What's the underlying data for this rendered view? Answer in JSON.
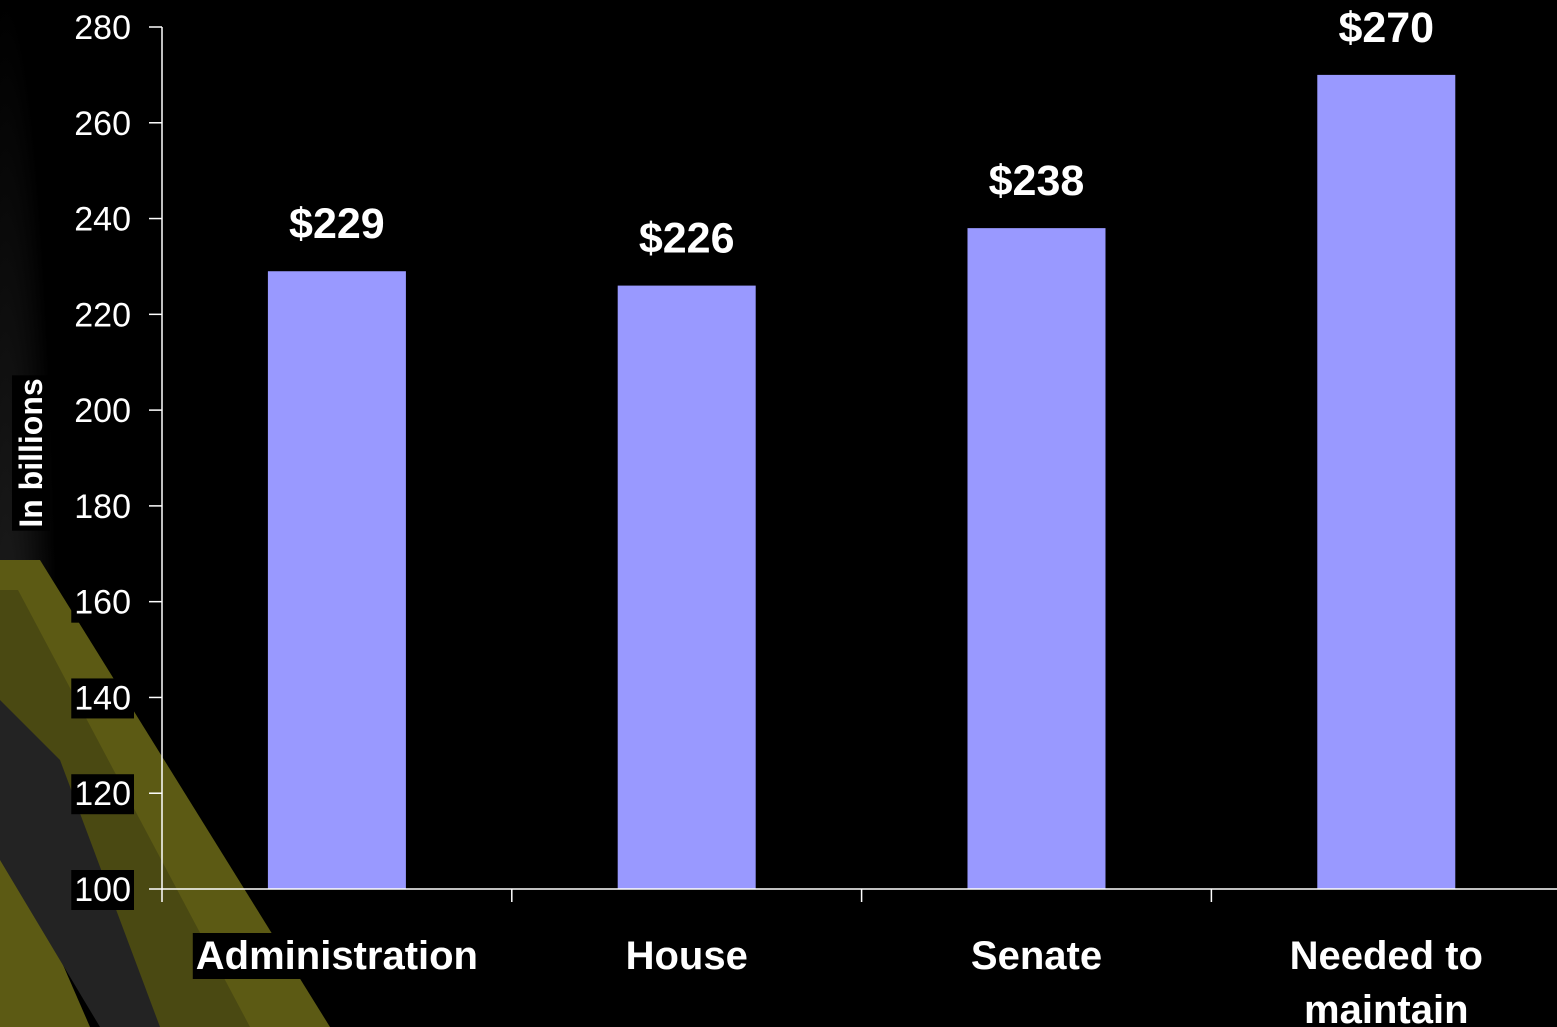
{
  "chart_data": {
    "type": "bar",
    "categories": [
      "Administration",
      "House",
      "Senate",
      "Needed to maintain"
    ],
    "category_labels": [
      [
        "Administration"
      ],
      [
        "House"
      ],
      [
        "Senate"
      ],
      [
        "Needed to",
        "maintain"
      ]
    ],
    "values": [
      229,
      226,
      238,
      270
    ],
    "data_labels": [
      "$229",
      "$226",
      "$238",
      "$270"
    ],
    "ylabel": "In billions",
    "xlabel": "",
    "ylim": [
      100,
      280
    ],
    "yticks": [
      "100",
      "120",
      "140",
      "160",
      "180",
      "200",
      "220",
      "240",
      "260",
      "280"
    ],
    "grid": false,
    "legend": "none"
  },
  "colors": {
    "background": "#000000",
    "bar": "#9999ff",
    "axis": "#ffffff",
    "text": "#ffffff",
    "decor_stripe": "#5c5a14",
    "decor_road": "#2b2b2b"
  }
}
